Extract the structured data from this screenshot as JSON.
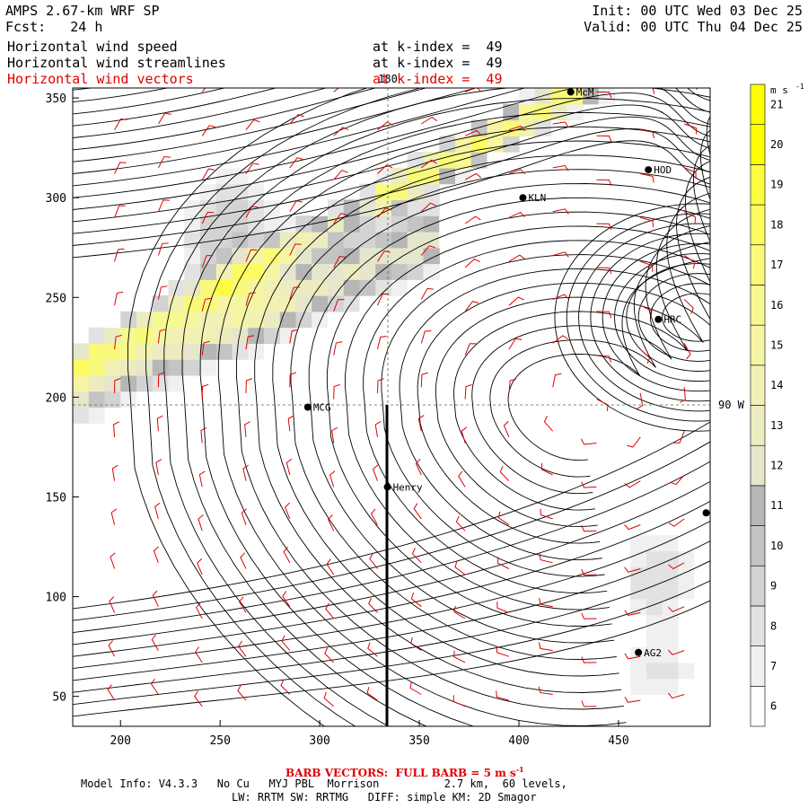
{
  "header": {
    "model_title": "AMPS 2.67-km WRF SP",
    "forecast": "Fcst:   24 h",
    "init": "Init: 00 UTC Wed 03 Dec 25",
    "valid": "Valid: 00 UTC Thu 04 Dec 25",
    "fields": [
      {
        "label": "Horizontal wind speed",
        "level": "at k-index =  49"
      },
      {
        "label": "Horizontal wind streamlines",
        "level": "at k-index =  49"
      },
      {
        "label": "Horizontal wind vectors",
        "level": "at k-index =  49"
      }
    ]
  },
  "footer": {
    "barb_note": "BARB VECTORS:  FULL BARB = 5 m s",
    "barb_unit_sup": "-1",
    "model_info": "Model Info: V4.3.3   No Cu   MYJ PBL  Morrison          2.7 km,  60 levels,",
    "physics": "LW: RRTM SW: RRTMG   DIFF: simple KM: 2D Smagor"
  },
  "colors": {
    "streamline": "#000000",
    "barb": "#e00000",
    "guide_line": "#2e7d32",
    "coast": "#007a00"
  },
  "chart_data": {
    "type": "heatmap",
    "x_ticks": [
      200,
      250,
      300,
      350,
      400,
      450
    ],
    "y_ticks": [
      50,
      100,
      150,
      200,
      250,
      300,
      350
    ],
    "xlim": [
      176,
      496
    ],
    "ylim": [
      35,
      355
    ],
    "meridian_180_label": "180",
    "meridian_90w_label": "90 W",
    "colorbar": {
      "unit": "m s",
      "unit_sup": "-1",
      "levels": [
        6,
        7,
        8,
        9,
        10,
        11,
        12,
        13,
        14,
        15,
        16,
        17,
        18,
        19,
        20,
        21
      ],
      "colors": [
        "#ffffff",
        "#f0f0f0",
        "#e2e2e2",
        "#d3d3d3",
        "#c4c4c4",
        "#b6b6b6",
        "#e6e6cc",
        "#ececc0",
        "#f1f1b4",
        "#f5f5a4",
        "#f8f890",
        "#fafa7a",
        "#fcfc62",
        "#fdfd40",
        "#ffff00",
        "#ffff00"
      ]
    },
    "stations": [
      {
        "name": "McM",
        "x": 426,
        "y": 353
      },
      {
        "name": "HOD",
        "x": 465,
        "y": 314
      },
      {
        "name": "KLN",
        "x": 402,
        "y": 300
      },
      {
        "name": "HRC",
        "x": 470,
        "y": 239
      },
      {
        "name": "MCG",
        "x": 294,
        "y": 195
      },
      {
        "name": "Henry",
        "x": 334,
        "y": 155
      },
      {
        "name": "AG2",
        "x": 460,
        "y": 72
      },
      {
        "name": "",
        "x": 494,
        "y": 142
      }
    ]
  }
}
